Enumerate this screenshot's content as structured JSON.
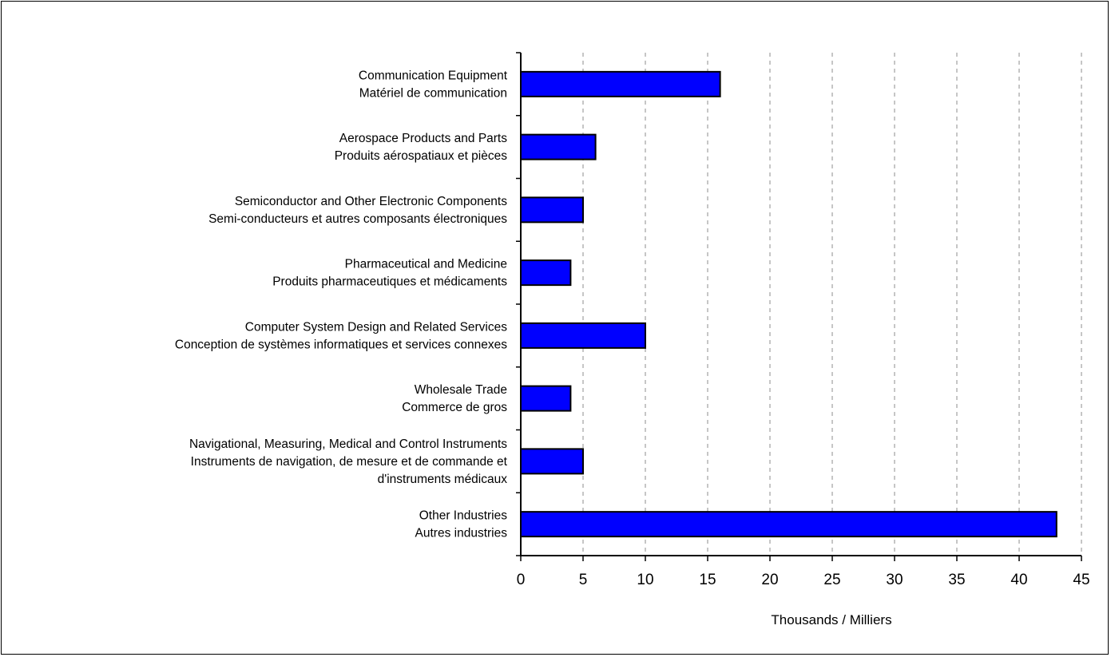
{
  "chart_data": {
    "type": "bar",
    "orientation": "horizontal",
    "categories": [
      [
        "Communication Equipment",
        "Matériel de communication"
      ],
      [
        "Aerospace Products and Parts",
        "Produits aérospatiaux et pièces"
      ],
      [
        "Semiconductor and Other Electronic Components",
        "Semi-conducteurs et autres composants électroniques"
      ],
      [
        "Pharmaceutical and Medicine",
        "Produits pharmaceutiques et médicaments"
      ],
      [
        "Computer System Design and Related Services",
        "Conception de systèmes informatiques et services connexes"
      ],
      [
        "Wholesale Trade",
        "Commerce de gros"
      ],
      [
        "Navigational, Measuring, Medical and Control Instruments",
        "Instruments de navigation, de mesure et de commande et",
        "d'instruments médicaux"
      ],
      [
        "Other Industries",
        "Autres industries"
      ]
    ],
    "values": [
      16,
      6,
      5,
      4,
      10,
      4,
      5,
      43
    ],
    "xlabel": "Thousands / Milliers",
    "xlim": [
      0,
      45
    ],
    "xticks": [
      0,
      5,
      10,
      15,
      20,
      25,
      30,
      35,
      40,
      45
    ],
    "grid": "vertical dashed",
    "bar_color": "#0000ff",
    "grid_color": "#b3b3b3"
  }
}
